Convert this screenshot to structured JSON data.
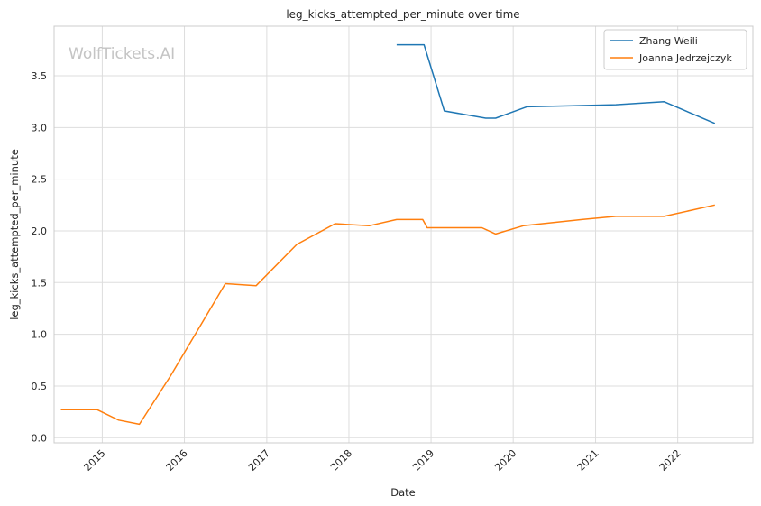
{
  "chart_data": {
    "type": "line",
    "title": "leg_kicks_attempted_per_minute over time",
    "xlabel": "Date",
    "ylabel": "leg_kicks_attempted_per_minute",
    "watermark": "WolfTickets.AI",
    "x_ticks": [
      "2015",
      "2016",
      "2017",
      "2018",
      "2019",
      "2020",
      "2021",
      "2022"
    ],
    "y_ticks": [
      "0.0",
      "0.5",
      "1.0",
      "1.5",
      "2.0",
      "2.5",
      "3.0",
      "3.5"
    ],
    "xlim": [
      "2014-06-01",
      "2022-12-01"
    ],
    "ylim": [
      -0.05,
      3.98
    ],
    "grid": true,
    "legend_position": "top-right",
    "series": [
      {
        "name": "Zhang Weili",
        "color": "#1f77b4",
        "points": [
          [
            "2018-08-01",
            3.8
          ],
          [
            "2018-12-01",
            3.8
          ],
          [
            "2019-03-01",
            3.16
          ],
          [
            "2019-09-01",
            3.09
          ],
          [
            "2019-10-15",
            3.09
          ],
          [
            "2020-03-01",
            3.2
          ],
          [
            "2021-04-01",
            3.22
          ],
          [
            "2021-11-01",
            3.25
          ],
          [
            "2022-06-15",
            3.04
          ]
        ]
      },
      {
        "name": "Joanna Jedrzejczyk",
        "color": "#ff7f0e",
        "points": [
          [
            "2014-07-01",
            0.27
          ],
          [
            "2014-12-10",
            0.27
          ],
          [
            "2015-03-15",
            0.17
          ],
          [
            "2015-06-15",
            0.13
          ],
          [
            "2015-11-01",
            0.6
          ],
          [
            "2016-07-01",
            1.49
          ],
          [
            "2016-11-15",
            1.47
          ],
          [
            "2017-05-15",
            1.87
          ],
          [
            "2017-11-01",
            2.07
          ],
          [
            "2018-04-01",
            2.05
          ],
          [
            "2018-08-01",
            2.11
          ],
          [
            "2018-11-25",
            2.11
          ],
          [
            "2018-12-15",
            2.03
          ],
          [
            "2019-08-15",
            2.03
          ],
          [
            "2019-10-15",
            1.97
          ],
          [
            "2020-02-15",
            2.05
          ],
          [
            "2020-11-01",
            2.11
          ],
          [
            "2021-04-01",
            2.14
          ],
          [
            "2021-11-01",
            2.14
          ],
          [
            "2022-06-15",
            2.25
          ]
        ]
      }
    ]
  }
}
